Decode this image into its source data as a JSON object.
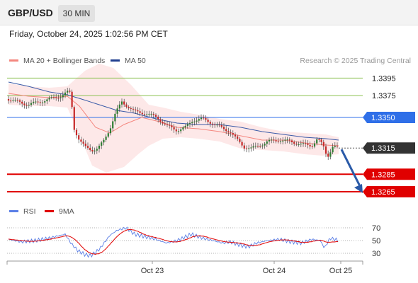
{
  "header": {
    "symbol": "GBP/USD",
    "timeframe": "30 MIN"
  },
  "datetime": "Friday, October 24, 2025 1:02:56 PM CET",
  "legend": {
    "ma20": {
      "label": "MA 20 + Bollinger Bands",
      "color": "#f4877f"
    },
    "ma50": {
      "label": "MA 50",
      "color": "#1f3f8f"
    }
  },
  "credit": "Research © 2025 Trading Central",
  "rsi_legend": {
    "rsi": {
      "label": "RSI",
      "color": "#5b7fe6"
    },
    "ma9": {
      "label": "9MA",
      "color": "#e00000"
    }
  },
  "chart_data": {
    "type": "candlestick",
    "price_axis": {
      "ticks": []
    },
    "levels": [
      {
        "label": "1.3395",
        "value": 1.3395,
        "kind": "resistance-minor",
        "color": "#8cc152"
      },
      {
        "label": "1.3375",
        "value": 1.3375,
        "kind": "resistance-minor",
        "color": "#8cc152"
      },
      {
        "label": "1.3350",
        "value": 1.335,
        "kind": "pivot",
        "color": "#2f6fe8"
      },
      {
        "label": "1.3315",
        "value": 1.3315,
        "kind": "last-price",
        "color": "#333333"
      },
      {
        "label": "1.3285",
        "value": 1.3285,
        "kind": "support",
        "color": "#e00000"
      },
      {
        "label": "1.3265",
        "value": 1.3265,
        "kind": "support",
        "color": "#e00000"
      }
    ],
    "x_labels": [
      "Oct 23",
      "Oct 24",
      "Oct 25"
    ],
    "rsi_axis": [
      "70",
      "50",
      "30"
    ],
    "forecast_arrow": {
      "from": 1.3315,
      "to": 1.3265,
      "color": "#2a5aa8"
    }
  }
}
